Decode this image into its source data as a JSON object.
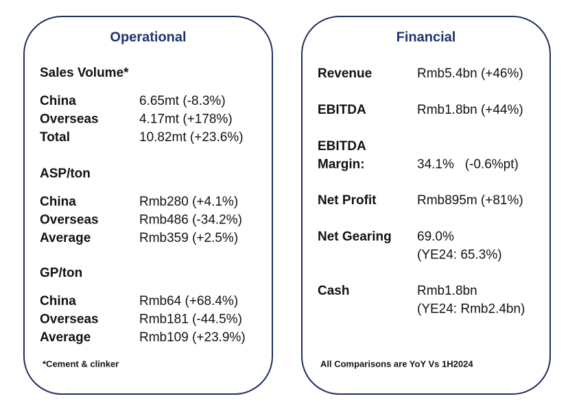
{
  "operational": {
    "title": "Operational",
    "sections": [
      {
        "heading": "Sales Volume*",
        "rows": [
          {
            "label": "China",
            "value": "6.65mt (-8.3%)"
          },
          {
            "label": "Overseas",
            "value": "4.17mt (+178%)"
          },
          {
            "label": "Total",
            "value": "10.82mt (+23.6%)"
          }
        ]
      },
      {
        "heading": "ASP/ton",
        "rows": [
          {
            "label": "China",
            "value": "Rmb280 (+4.1%)"
          },
          {
            "label": "Overseas",
            "value": "Rmb486 (-34.2%)"
          },
          {
            "label": "Average",
            "value": "Rmb359 (+2.5%)"
          }
        ]
      },
      {
        "heading": "GP/ton",
        "rows": [
          {
            "label": "China",
            "value": "Rmb64 (+68.4%)"
          },
          {
            "label": "Overseas",
            "value": "Rmb181 (-44.5%)"
          },
          {
            "label": "Average",
            "value": "Rmb109 (+23.9%)"
          }
        ]
      }
    ],
    "footnote": "*Cement & clinker"
  },
  "financial": {
    "title": "Financial",
    "rows": [
      {
        "label": [
          "Revenue"
        ],
        "value": [
          "Rmb5.4bn (+46%)"
        ]
      },
      {
        "label": [
          "EBITDA"
        ],
        "value": [
          "Rmb1.8bn (+44%)"
        ]
      },
      {
        "label": [
          "EBITDA",
          "Margin:"
        ],
        "value": [
          "34.1%   (-0.6%pt)"
        ]
      },
      {
        "label": [
          "Net Profit"
        ],
        "value": [
          "Rmb895m (+81%)"
        ]
      },
      {
        "label": [
          "Net Gearing"
        ],
        "value": [
          "69.0%",
          "(YE24: 65.3%)"
        ]
      },
      {
        "label": [
          "Cash"
        ],
        "value": [
          "Rmb1.8bn",
          "(YE24: Rmb2.4bn)"
        ]
      }
    ],
    "footnote": "All Comparisons are YoY Vs 1H2024"
  }
}
